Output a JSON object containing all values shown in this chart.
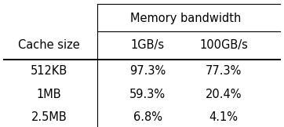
{
  "title": "Memory bandwidth",
  "col_headers": [
    "1GB/s",
    "100GB/s"
  ],
  "row_header": "Cache size",
  "rows": [
    "512KB",
    "1MB",
    "2.5MB"
  ],
  "values": [
    [
      "97.3%",
      "77.3%"
    ],
    [
      "59.3%",
      "20.4%"
    ],
    [
      "6.8%",
      "4.1%"
    ]
  ],
  "bg_color": "#ffffff",
  "text_color": "#000000",
  "font_size": 10.5
}
